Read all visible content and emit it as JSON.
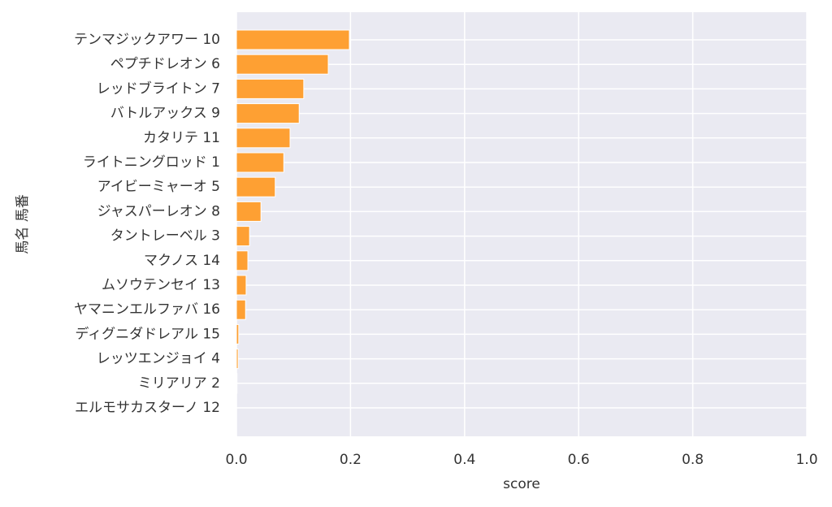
{
  "chart_data": {
    "type": "barh",
    "xlabel": "score",
    "ylabel": "馬名 馬番",
    "categories": [
      "テンマジックアワー 10",
      "ペプチドレオン 6",
      "レッドブライトン 7",
      "バトルアックス 9",
      "カタリテ 11",
      "ライトニングロッド 1",
      "アイビーミャーオ 5",
      "ジャスパーレオン 8",
      "タントレーベル 3",
      "マクノス 14",
      "ムソウテンセイ 13",
      "ヤマニンエルファバ 16",
      "ディグニダドレアル 15",
      "レッツエンジョイ 4",
      "ミリアリア 2",
      "エルモサカスターノ 12"
    ],
    "values": [
      0.198,
      0.161,
      0.118,
      0.11,
      0.094,
      0.083,
      0.068,
      0.043,
      0.023,
      0.02,
      0.017,
      0.016,
      0.004,
      0.003,
      0.001,
      0.0
    ],
    "color": "#fea033",
    "xlim": [
      0,
      1.0
    ],
    "xticks": [
      {
        "value": 0,
        "label": "0.0"
      },
      0.2,
      0.4,
      0.6,
      0.8,
      {
        "value": 1.0,
        "label": "1.0"
      }
    ],
    "grid": true
  }
}
